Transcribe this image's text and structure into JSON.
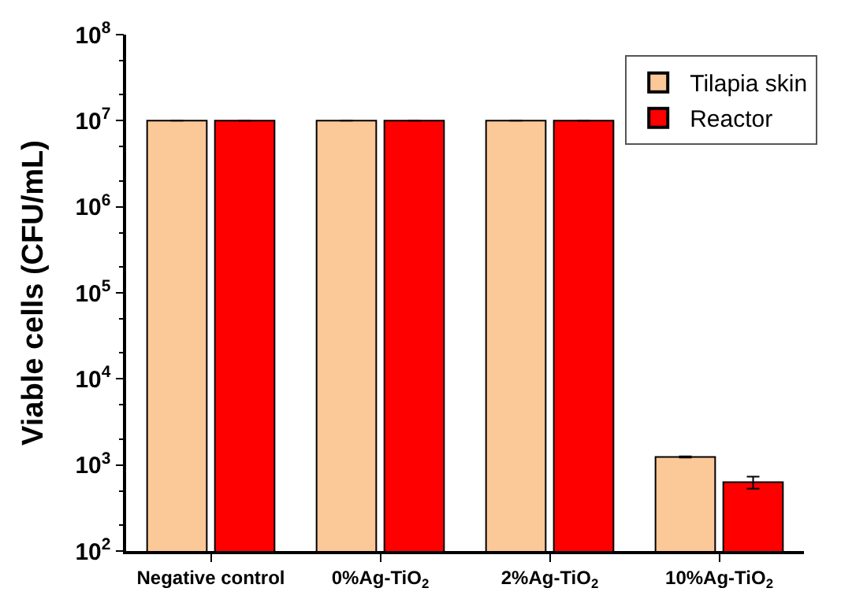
{
  "chart_data": {
    "type": "bar",
    "ylabel": "Viable cells (CFU/mL)",
    "categories": [
      "Negative control",
      "0%Ag-TiO$_{2}$",
      "2%Ag-TiO$_{2}$",
      "10%Ag-TiO$_{2}$"
    ],
    "series": [
      {
        "name": "Tilapia skin",
        "color": "#fbc898",
        "values": [
          10000000,
          10000000,
          10000000,
          1240
        ],
        "errors": [
          null,
          null,
          null,
          20
        ]
      },
      {
        "name": "Reactor",
        "color": "#fe0000",
        "values": [
          10000000,
          10000000,
          10000000,
          630
        ],
        "errors": [
          null,
          null,
          null,
          100
        ]
      }
    ],
    "log": "y",
    "ylim": [
      100,
      100000000
    ],
    "yticks": [
      {
        "value": 100,
        "label": "10$^{2}$"
      },
      {
        "value": 1000,
        "label": "10$^{3}$"
      },
      {
        "value": 10000,
        "label": "10$^{4}$"
      },
      {
        "value": 100000,
        "label": "10$^{5}$"
      },
      {
        "value": 1000000,
        "label": "10$^{6}$"
      },
      {
        "value": 10000000,
        "label": "10$^{7}$"
      },
      {
        "value": 100000000,
        "label": "10$^{8}$"
      }
    ],
    "legend": "top right"
  }
}
